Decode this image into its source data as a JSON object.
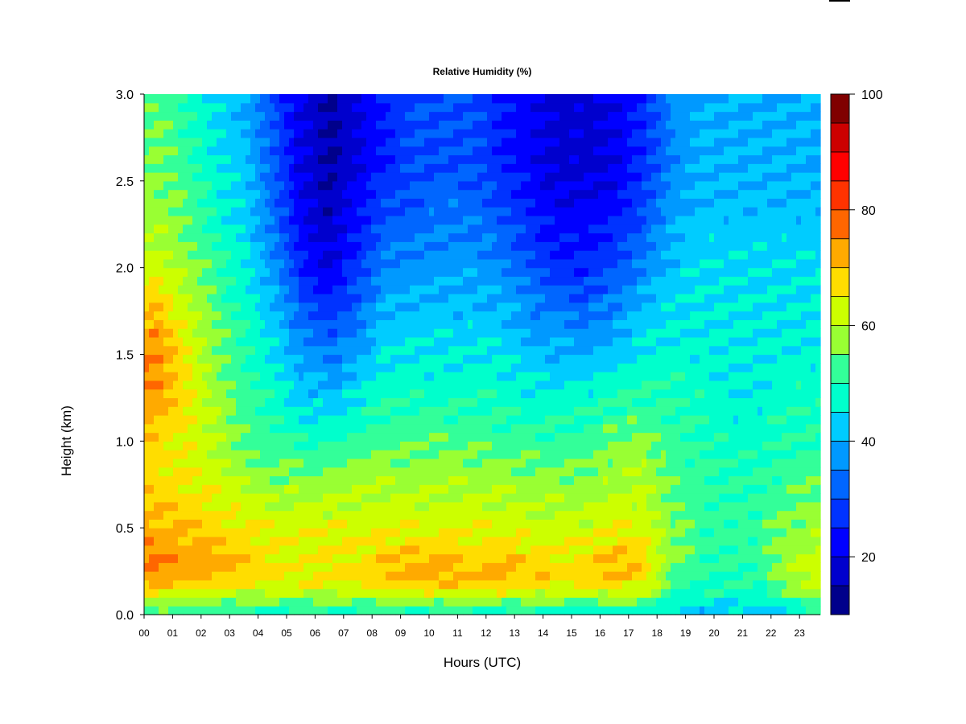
{
  "chart_data": {
    "type": "heatmap",
    "title": "Relative Humidity (%)",
    "xlabel": "Hours (UTC)",
    "ylabel": "Height (km)",
    "xlim": [
      0,
      24
    ],
    "ylim": [
      0.0,
      3.0
    ],
    "x_ticks": [
      "00",
      "01",
      "02",
      "03",
      "04",
      "05",
      "06",
      "07",
      "08",
      "09",
      "10",
      "11",
      "12",
      "13",
      "14",
      "15",
      "16",
      "17",
      "18",
      "19",
      "20",
      "21",
      "22",
      "23"
    ],
    "y_ticks": [
      "0.0",
      "0.5",
      "1.0",
      "1.5",
      "2.0",
      "2.5",
      "3.0"
    ],
    "y_tick_values": [
      0.0,
      0.5,
      1.0,
      1.5,
      2.0,
      2.5,
      3.0
    ],
    "colorbar": {
      "min": 10,
      "max": 100,
      "step": 5,
      "tick_labels": [
        "20",
        "40",
        "60",
        "80",
        "100"
      ],
      "tick_values": [
        20,
        40,
        60,
        80,
        100
      ],
      "colors": [
        "#00008b",
        "#0000cd",
        "#0000ff",
        "#0033ff",
        "#0066ff",
        "#0099ff",
        "#00ccff",
        "#00ffcc",
        "#33ff99",
        "#99ff33",
        "#ccff00",
        "#ffdd00",
        "#ffaa00",
        "#ff6600",
        "#ff3300",
        "#ff0000",
        "#cc0000",
        "#800000"
      ]
    },
    "height_levels_km": [
      0.0,
      0.1,
      0.2,
      0.3,
      0.5,
      0.8,
      1.0,
      1.3,
      1.6,
      2.0,
      2.3,
      2.6,
      3.0
    ],
    "hourly_profiles_rh": [
      [
        50,
        62,
        72,
        76,
        72,
        67,
        68,
        75,
        74,
        62,
        58,
        56,
        54
      ],
      [
        50,
        60,
        70,
        74,
        70,
        65,
        64,
        66,
        64,
        58,
        54,
        52,
        50
      ],
      [
        50,
        60,
        70,
        72,
        68,
        62,
        60,
        58,
        56,
        52,
        48,
        46,
        44
      ],
      [
        48,
        58,
        68,
        70,
        66,
        58,
        54,
        52,
        50,
        46,
        44,
        42,
        40
      ],
      [
        48,
        58,
        66,
        66,
        64,
        56,
        52,
        48,
        44,
        38,
        34,
        32,
        30
      ],
      [
        48,
        58,
        66,
        64,
        64,
        56,
        50,
        42,
        36,
        26,
        22,
        20,
        20
      ],
      [
        48,
        58,
        66,
        66,
        64,
        56,
        50,
        40,
        32,
        20,
        16,
        14,
        14
      ],
      [
        48,
        58,
        68,
        66,
        64,
        58,
        52,
        44,
        36,
        28,
        24,
        20,
        20
      ],
      [
        48,
        60,
        70,
        70,
        64,
        58,
        54,
        48,
        44,
        36,
        30,
        26,
        26
      ],
      [
        48,
        60,
        72,
        72,
        64,
        58,
        54,
        48,
        44,
        38,
        32,
        30,
        30
      ],
      [
        48,
        60,
        72,
        72,
        64,
        58,
        54,
        48,
        44,
        38,
        34,
        30,
        30
      ],
      [
        48,
        60,
        70,
        68,
        64,
        58,
        54,
        48,
        44,
        38,
        34,
        30,
        30
      ],
      [
        46,
        60,
        72,
        72,
        64,
        58,
        52,
        48,
        44,
        36,
        30,
        26,
        26
      ],
      [
        46,
        60,
        70,
        68,
        62,
        56,
        52,
        46,
        40,
        32,
        26,
        22,
        22
      ],
      [
        44,
        58,
        68,
        66,
        62,
        56,
        52,
        46,
        38,
        26,
        22,
        18,
        18
      ],
      [
        44,
        58,
        68,
        68,
        62,
        56,
        52,
        46,
        38,
        26,
        22,
        18,
        18
      ],
      [
        44,
        60,
        70,
        72,
        64,
        58,
        56,
        48,
        40,
        30,
        24,
        20,
        20
      ],
      [
        44,
        58,
        68,
        68,
        64,
        60,
        56,
        50,
        44,
        36,
        30,
        26,
        26
      ],
      [
        44,
        50,
        54,
        56,
        56,
        54,
        52,
        50,
        46,
        42,
        38,
        36,
        36
      ],
      [
        40,
        48,
        50,
        52,
        52,
        52,
        50,
        48,
        46,
        44,
        42,
        40,
        40
      ],
      [
        42,
        48,
        50,
        50,
        52,
        50,
        48,
        46,
        46,
        44,
        42,
        40,
        40
      ],
      [
        42,
        46,
        50,
        52,
        52,
        50,
        48,
        46,
        46,
        44,
        42,
        40,
        40
      ],
      [
        44,
        52,
        58,
        58,
        56,
        52,
        50,
        48,
        46,
        44,
        42,
        40,
        40
      ],
      [
        46,
        56,
        62,
        62,
        58,
        54,
        50,
        48,
        46,
        44,
        42,
        40,
        40
      ]
    ]
  }
}
